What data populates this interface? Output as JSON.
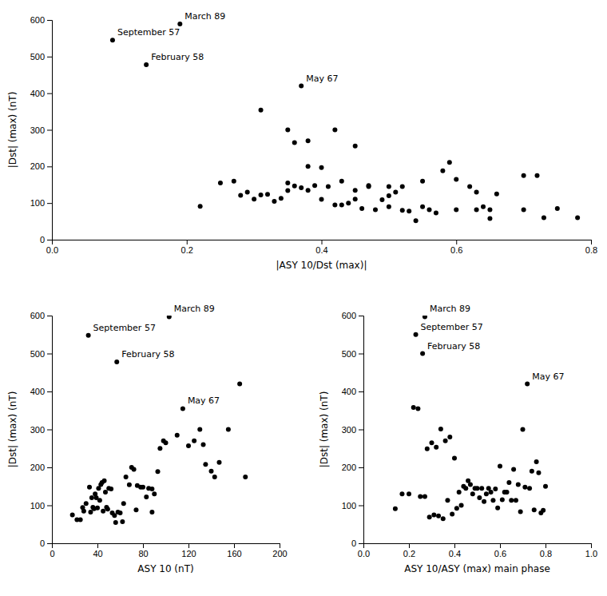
{
  "chart_data": [
    {
      "type": "scatter",
      "xlabel": "|ASY 10/Dst (max)|",
      "ylabel": "|Dst| (max) (nT)",
      "xlim": [
        0,
        0.8
      ],
      "ylim": [
        0,
        600
      ],
      "xticks": [
        {
          "value": 0,
          "label": "0.0"
        },
        0.2,
        0.4,
        0.6,
        0.8
      ],
      "yticks": [
        0,
        100,
        200,
        300,
        400,
        500,
        600
      ],
      "grid": false,
      "color": "#000000",
      "annotations": [
        {
          "text": "March 89",
          "x": 0.19,
          "y": 589
        },
        {
          "text": "September 57",
          "x": 0.09,
          "y": 545
        },
        {
          "text": "February 58",
          "x": 0.14,
          "y": 478
        },
        {
          "text": "May 67",
          "x": 0.37,
          "y": 420
        }
      ],
      "x": [
        0.09,
        0.14,
        0.19,
        0.37,
        0.31,
        0.35,
        0.36,
        0.38,
        0.42,
        0.45,
        0.38,
        0.4,
        0.43,
        0.47,
        0.5,
        0.52,
        0.55,
        0.6,
        0.63,
        0.65,
        0.7,
        0.75,
        0.78,
        0.22,
        0.25,
        0.27,
        0.28,
        0.29,
        0.3,
        0.31,
        0.32,
        0.33,
        0.34,
        0.35,
        0.35,
        0.36,
        0.37,
        0.38,
        0.39,
        0.4,
        0.41,
        0.42,
        0.43,
        0.44,
        0.45,
        0.45,
        0.46,
        0.47,
        0.48,
        0.49,
        0.5,
        0.5,
        0.51,
        0.52,
        0.53,
        0.54,
        0.55,
        0.56,
        0.57,
        0.58,
        0.59,
        0.6,
        0.62,
        0.63,
        0.64,
        0.65,
        0.66,
        0.7,
        0.72,
        0.73
      ],
      "y": [
        545,
        478,
        589,
        420,
        354,
        300,
        265,
        270,
        300,
        256,
        200,
        197,
        160,
        145,
        145,
        145,
        160,
        165,
        130,
        82,
        175,
        85,
        60,
        91,
        155,
        160,
        121,
        130,
        111,
        122,
        124,
        105,
        113,
        134,
        155,
        147,
        142,
        135,
        148,
        110,
        145,
        95,
        95,
        100,
        135,
        111,
        85,
        148,
        82,
        109,
        90,
        120,
        130,
        80,
        78,
        52,
        90,
        82,
        73,
        188,
        211,
        82,
        145,
        82,
        90,
        58,
        125,
        82,
        175,
        60
      ]
    },
    {
      "type": "scatter",
      "xlabel": "ASY 10 (nT)",
      "ylabel": "|Dst| (max) (nT)",
      "xlim": [
        0,
        200
      ],
      "ylim": [
        0,
        600
      ],
      "xticks": [
        0,
        40,
        80,
        120,
        160,
        200
      ],
      "yticks": [
        0,
        100,
        200,
        300,
        400,
        500,
        600
      ],
      "grid": false,
      "color": "#000000",
      "annotations": [
        {
          "text": "March 89",
          "x": 103,
          "y": 597
        },
        {
          "text": "September 57",
          "x": 32,
          "y": 548
        },
        {
          "text": "February 58",
          "x": 57,
          "y": 478
        },
        {
          "text": "May 67",
          "x": 115,
          "y": 355
        }
      ],
      "x": [
        32,
        57,
        103,
        115,
        37,
        40,
        42,
        45,
        48,
        50,
        52,
        55,
        58,
        60,
        63,
        65,
        68,
        70,
        72,
        75,
        78,
        80,
        83,
        85,
        88,
        90,
        93,
        95,
        98,
        100,
        110,
        120,
        125,
        130,
        133,
        135,
        140,
        143,
        147,
        155,
        165,
        170,
        18,
        22,
        25,
        27,
        28,
        30,
        33,
        34,
        35,
        36,
        38,
        39,
        41,
        43,
        44,
        46,
        47,
        49,
        53,
        56,
        62,
        74,
        88
      ],
      "y": [
        548,
        478,
        597,
        355,
        91,
        93,
        113,
        85,
        95,
        145,
        143,
        73,
        82,
        80,
        105,
        175,
        154,
        200,
        195,
        152,
        148,
        148,
        122,
        145,
        143,
        130,
        189,
        250,
        270,
        265,
        285,
        257,
        270,
        300,
        260,
        208,
        190,
        175,
        213,
        300,
        420,
        175,
        75,
        62,
        62,
        94,
        85,
        105,
        148,
        82,
        120,
        95,
        130,
        120,
        145,
        155,
        160,
        165,
        135,
        90,
        80,
        55,
        57,
        88,
        82
      ]
    },
    {
      "type": "scatter",
      "xlabel": "ASY 10/ASY (max) main phase",
      "ylabel": "|Dst| (max) (nT)",
      "xlim": [
        0,
        1.0
      ],
      "ylim": [
        0,
        600
      ],
      "xticks": [
        {
          "value": 0,
          "label": "0.0"
        },
        0.2,
        0.4,
        0.6,
        0.8,
        {
          "value": 1.0,
          "label": "1.0"
        }
      ],
      "yticks": [
        0,
        100,
        200,
        300,
        400,
        500,
        600
      ],
      "grid": false,
      "color": "#000000",
      "annotations": [
        {
          "text": "March 89",
          "x": 0.27,
          "y": 597
        },
        {
          "text": "September 57",
          "x": 0.23,
          "y": 550
        },
        {
          "text": "February 58",
          "x": 0.26,
          "y": 500
        },
        {
          "text": "May 67",
          "x": 0.72,
          "y": 420
        }
      ],
      "x": [
        0.23,
        0.26,
        0.27,
        0.72,
        0.22,
        0.24,
        0.28,
        0.3,
        0.32,
        0.34,
        0.36,
        0.38,
        0.4,
        0.42,
        0.44,
        0.46,
        0.48,
        0.5,
        0.52,
        0.54,
        0.56,
        0.58,
        0.6,
        0.62,
        0.64,
        0.66,
        0.68,
        0.7,
        0.74,
        0.76,
        0.78,
        0.8,
        0.14,
        0.17,
        0.2,
        0.25,
        0.27,
        0.29,
        0.31,
        0.33,
        0.35,
        0.37,
        0.39,
        0.41,
        0.43,
        0.45,
        0.47,
        0.49,
        0.51,
        0.53,
        0.55,
        0.57,
        0.59,
        0.61,
        0.63,
        0.65,
        0.67,
        0.69,
        0.71,
        0.73,
        0.75,
        0.77,
        0.79
      ],
      "y": [
        550,
        500,
        597,
        420,
        358,
        355,
        249,
        265,
        253,
        301,
        270,
        280,
        224,
        135,
        150,
        165,
        130,
        145,
        145,
        130,
        135,
        143,
        203,
        135,
        160,
        195,
        155,
        300,
        190,
        215,
        80,
        150,
        91,
        130,
        130,
        123,
        123,
        69,
        75,
        72,
        65,
        113,
        77,
        92,
        100,
        145,
        155,
        145,
        120,
        110,
        145,
        113,
        93,
        115,
        135,
        113,
        113,
        83,
        148,
        145,
        88,
        186,
        87
      ]
    }
  ]
}
